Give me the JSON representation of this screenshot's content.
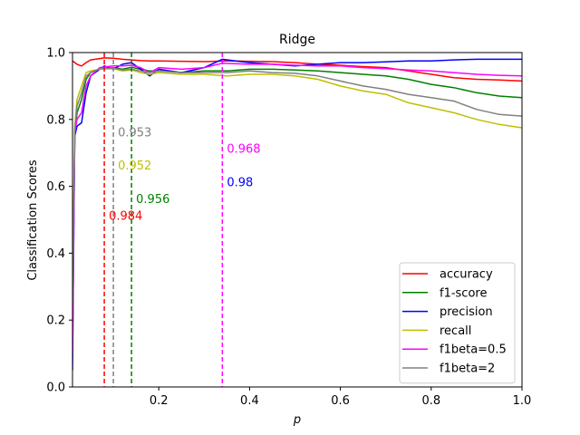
{
  "chart_data": {
    "type": "line",
    "title": "Ridge",
    "xlabel": "p",
    "ylabel": "Classification Scores",
    "xlim": [
      0.01,
      1.0
    ],
    "ylim": [
      0,
      1.0
    ],
    "xticks": [
      "0.2",
      "0.4",
      "0.6",
      "0.8",
      "1.0"
    ],
    "xtick_values": [
      0.2,
      0.4,
      0.6,
      0.8,
      1.0
    ],
    "yticks": [
      "0.0",
      "0.2",
      "0.4",
      "0.6",
      "0.8",
      "1.0"
    ],
    "ytick_values": [
      0.0,
      0.2,
      0.4,
      0.6,
      0.8,
      1.0
    ],
    "grid": false,
    "legend_position": "lower-right",
    "series": [
      {
        "name": "accuracy",
        "color": "#ff0000",
        "x": [
          0.01,
          0.02,
          0.03,
          0.04,
          0.05,
          0.07,
          0.08,
          0.1,
          0.12,
          0.14,
          0.16,
          0.18,
          0.2,
          0.25,
          0.3,
          0.35,
          0.4,
          0.45,
          0.5,
          0.55,
          0.6,
          0.65,
          0.7,
          0.75,
          0.8,
          0.85,
          0.9,
          0.95,
          1.0
        ],
        "y": [
          0.975,
          0.965,
          0.96,
          0.97,
          0.978,
          0.982,
          0.984,
          0.983,
          0.98,
          0.978,
          0.976,
          0.975,
          0.975,
          0.974,
          0.973,
          0.975,
          0.974,
          0.973,
          0.97,
          0.965,
          0.962,
          0.958,
          0.955,
          0.945,
          0.935,
          0.925,
          0.92,
          0.918,
          0.915
        ]
      },
      {
        "name": "f1-score",
        "color": "#008000",
        "x": [
          0.01,
          0.015,
          0.02,
          0.03,
          0.04,
          0.05,
          0.07,
          0.1,
          0.12,
          0.14,
          0.16,
          0.18,
          0.2,
          0.25,
          0.3,
          0.35,
          0.4,
          0.45,
          0.5,
          0.55,
          0.6,
          0.65,
          0.7,
          0.75,
          0.8,
          0.85,
          0.9,
          0.95,
          1.0
        ],
        "y": [
          0.2,
          0.75,
          0.82,
          0.86,
          0.92,
          0.94,
          0.95,
          0.955,
          0.95,
          0.956,
          0.95,
          0.945,
          0.945,
          0.94,
          0.945,
          0.945,
          0.95,
          0.95,
          0.948,
          0.945,
          0.94,
          0.935,
          0.93,
          0.92,
          0.905,
          0.895,
          0.88,
          0.87,
          0.865
        ]
      },
      {
        "name": "precision",
        "color": "#0000ff",
        "x": [
          0.01,
          0.015,
          0.02,
          0.03,
          0.04,
          0.05,
          0.07,
          0.08,
          0.1,
          0.12,
          0.14,
          0.16,
          0.18,
          0.2,
          0.25,
          0.3,
          0.34,
          0.4,
          0.45,
          0.5,
          0.55,
          0.6,
          0.65,
          0.7,
          0.75,
          0.8,
          0.85,
          0.9,
          0.95,
          1.0
        ],
        "y": [
          0.05,
          0.75,
          0.78,
          0.79,
          0.88,
          0.93,
          0.95,
          0.96,
          0.95,
          0.965,
          0.97,
          0.95,
          0.93,
          0.95,
          0.94,
          0.955,
          0.98,
          0.97,
          0.965,
          0.96,
          0.965,
          0.97,
          0.97,
          0.972,
          0.975,
          0.975,
          0.978,
          0.98,
          0.98,
          0.98
        ]
      },
      {
        "name": "recall",
        "color": "#bfbf00",
        "x": [
          0.01,
          0.015,
          0.02,
          0.03,
          0.04,
          0.05,
          0.07,
          0.1,
          0.12,
          0.14,
          0.16,
          0.18,
          0.2,
          0.25,
          0.3,
          0.35,
          0.4,
          0.45,
          0.5,
          0.55,
          0.6,
          0.65,
          0.7,
          0.75,
          0.8,
          0.85,
          0.9,
          0.95,
          1.0
        ],
        "y": [
          0.3,
          0.78,
          0.86,
          0.9,
          0.94,
          0.945,
          0.95,
          0.952,
          0.945,
          0.948,
          0.94,
          0.935,
          0.94,
          0.935,
          0.935,
          0.93,
          0.935,
          0.935,
          0.93,
          0.92,
          0.9,
          0.885,
          0.875,
          0.85,
          0.835,
          0.82,
          0.8,
          0.785,
          0.775
        ]
      },
      {
        "name": "f1beta=0.5",
        "color": "#ff00ff",
        "x": [
          0.01,
          0.015,
          0.02,
          0.03,
          0.04,
          0.05,
          0.07,
          0.1,
          0.12,
          0.14,
          0.16,
          0.18,
          0.2,
          0.25,
          0.3,
          0.34,
          0.4,
          0.45,
          0.5,
          0.55,
          0.6,
          0.65,
          0.7,
          0.75,
          0.8,
          0.85,
          0.9,
          0.95,
          1.0
        ],
        "y": [
          0.1,
          0.76,
          0.8,
          0.82,
          0.9,
          0.93,
          0.955,
          0.96,
          0.96,
          0.962,
          0.955,
          0.94,
          0.955,
          0.95,
          0.955,
          0.968,
          0.965,
          0.965,
          0.962,
          0.96,
          0.96,
          0.955,
          0.952,
          0.948,
          0.945,
          0.94,
          0.935,
          0.932,
          0.93
        ]
      },
      {
        "name": "f1beta=2",
        "color": "#808080",
        "x": [
          0.01,
          0.015,
          0.02,
          0.03,
          0.04,
          0.05,
          0.07,
          0.1,
          0.12,
          0.14,
          0.16,
          0.18,
          0.2,
          0.25,
          0.3,
          0.35,
          0.4,
          0.45,
          0.5,
          0.55,
          0.6,
          0.65,
          0.7,
          0.75,
          0.8,
          0.85,
          0.9,
          0.95,
          1.0
        ],
        "y": [
          0.25,
          0.77,
          0.84,
          0.88,
          0.93,
          0.94,
          0.952,
          0.953,
          0.948,
          0.95,
          0.945,
          0.94,
          0.945,
          0.94,
          0.94,
          0.94,
          0.945,
          0.94,
          0.938,
          0.93,
          0.915,
          0.9,
          0.89,
          0.875,
          0.865,
          0.855,
          0.83,
          0.815,
          0.81
        ]
      }
    ],
    "vlines": [
      {
        "x": 0.08,
        "color": "#ff0000"
      },
      {
        "x": 0.1,
        "color": "#808080"
      },
      {
        "x": 0.14,
        "color": "#008000"
      },
      {
        "x": 0.34,
        "color": "#ff00ff"
      }
    ],
    "annotations": [
      {
        "text": "0.953",
        "x": 0.11,
        "y": 0.75,
        "color": "#808080"
      },
      {
        "text": "0.952",
        "x": 0.11,
        "y": 0.65,
        "color": "#bfbf00"
      },
      {
        "text": "0.956",
        "x": 0.15,
        "y": 0.55,
        "color": "#008000"
      },
      {
        "text": "0.984",
        "x": 0.09,
        "y": 0.5,
        "color": "#ff0000"
      },
      {
        "text": "0.968",
        "x": 0.35,
        "y": 0.7,
        "color": "#ff00ff"
      },
      {
        "text": "0.98",
        "x": 0.35,
        "y": 0.6,
        "color": "#0000ff"
      }
    ]
  }
}
